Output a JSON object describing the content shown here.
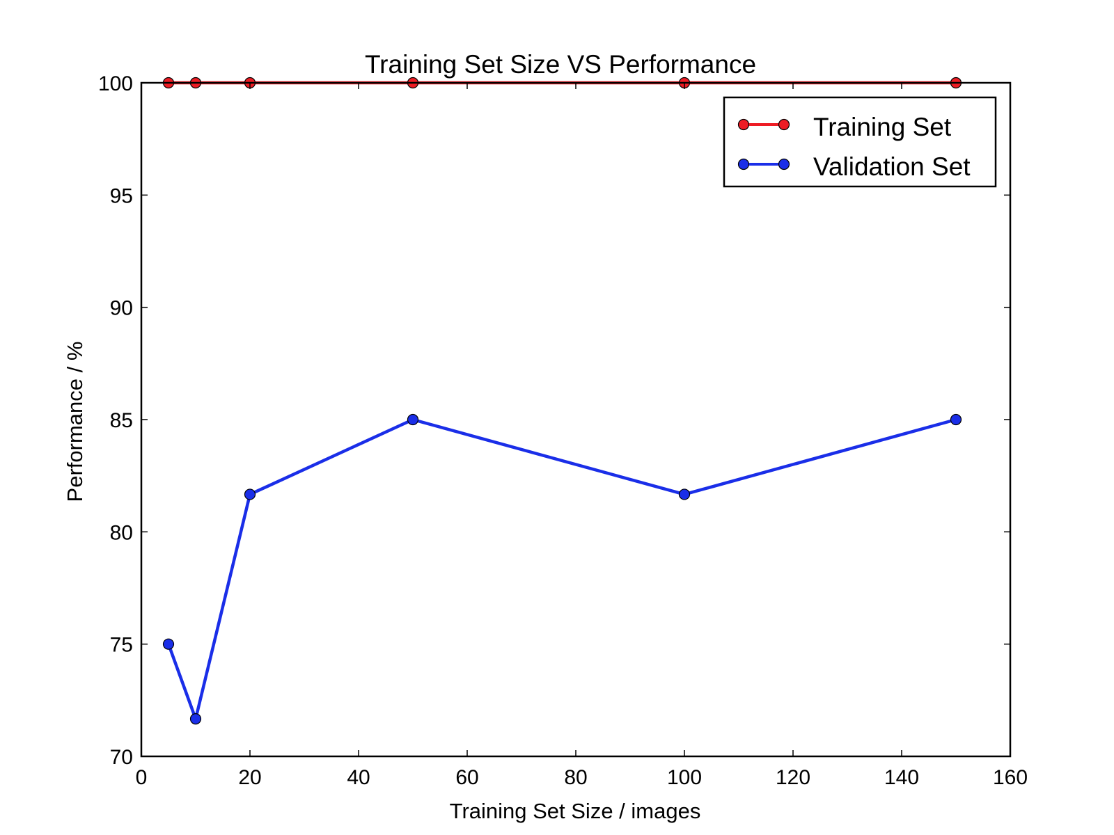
{
  "chart_data": {
    "type": "line",
    "title": "Training Set Size VS Performance",
    "xlabel": "Training Set Size / images",
    "ylabel": "Performance / %",
    "xlim": [
      0,
      160
    ],
    "ylim": [
      70,
      100
    ],
    "xticks": [
      0,
      20,
      40,
      60,
      80,
      100,
      120,
      140,
      160
    ],
    "yticks": [
      70,
      75,
      80,
      85,
      90,
      95,
      100
    ],
    "grid": false,
    "legend_position": "top-right",
    "x": [
      5,
      10,
      20,
      50,
      100,
      150
    ],
    "series": [
      {
        "name": "Training Set",
        "color": "#ee1c24",
        "values": [
          100,
          100,
          100,
          100,
          100,
          100
        ]
      },
      {
        "name": "Validation Set",
        "color": "#1a2ee8",
        "values": [
          75,
          71.67,
          81.67,
          85,
          81.67,
          85
        ]
      }
    ]
  }
}
